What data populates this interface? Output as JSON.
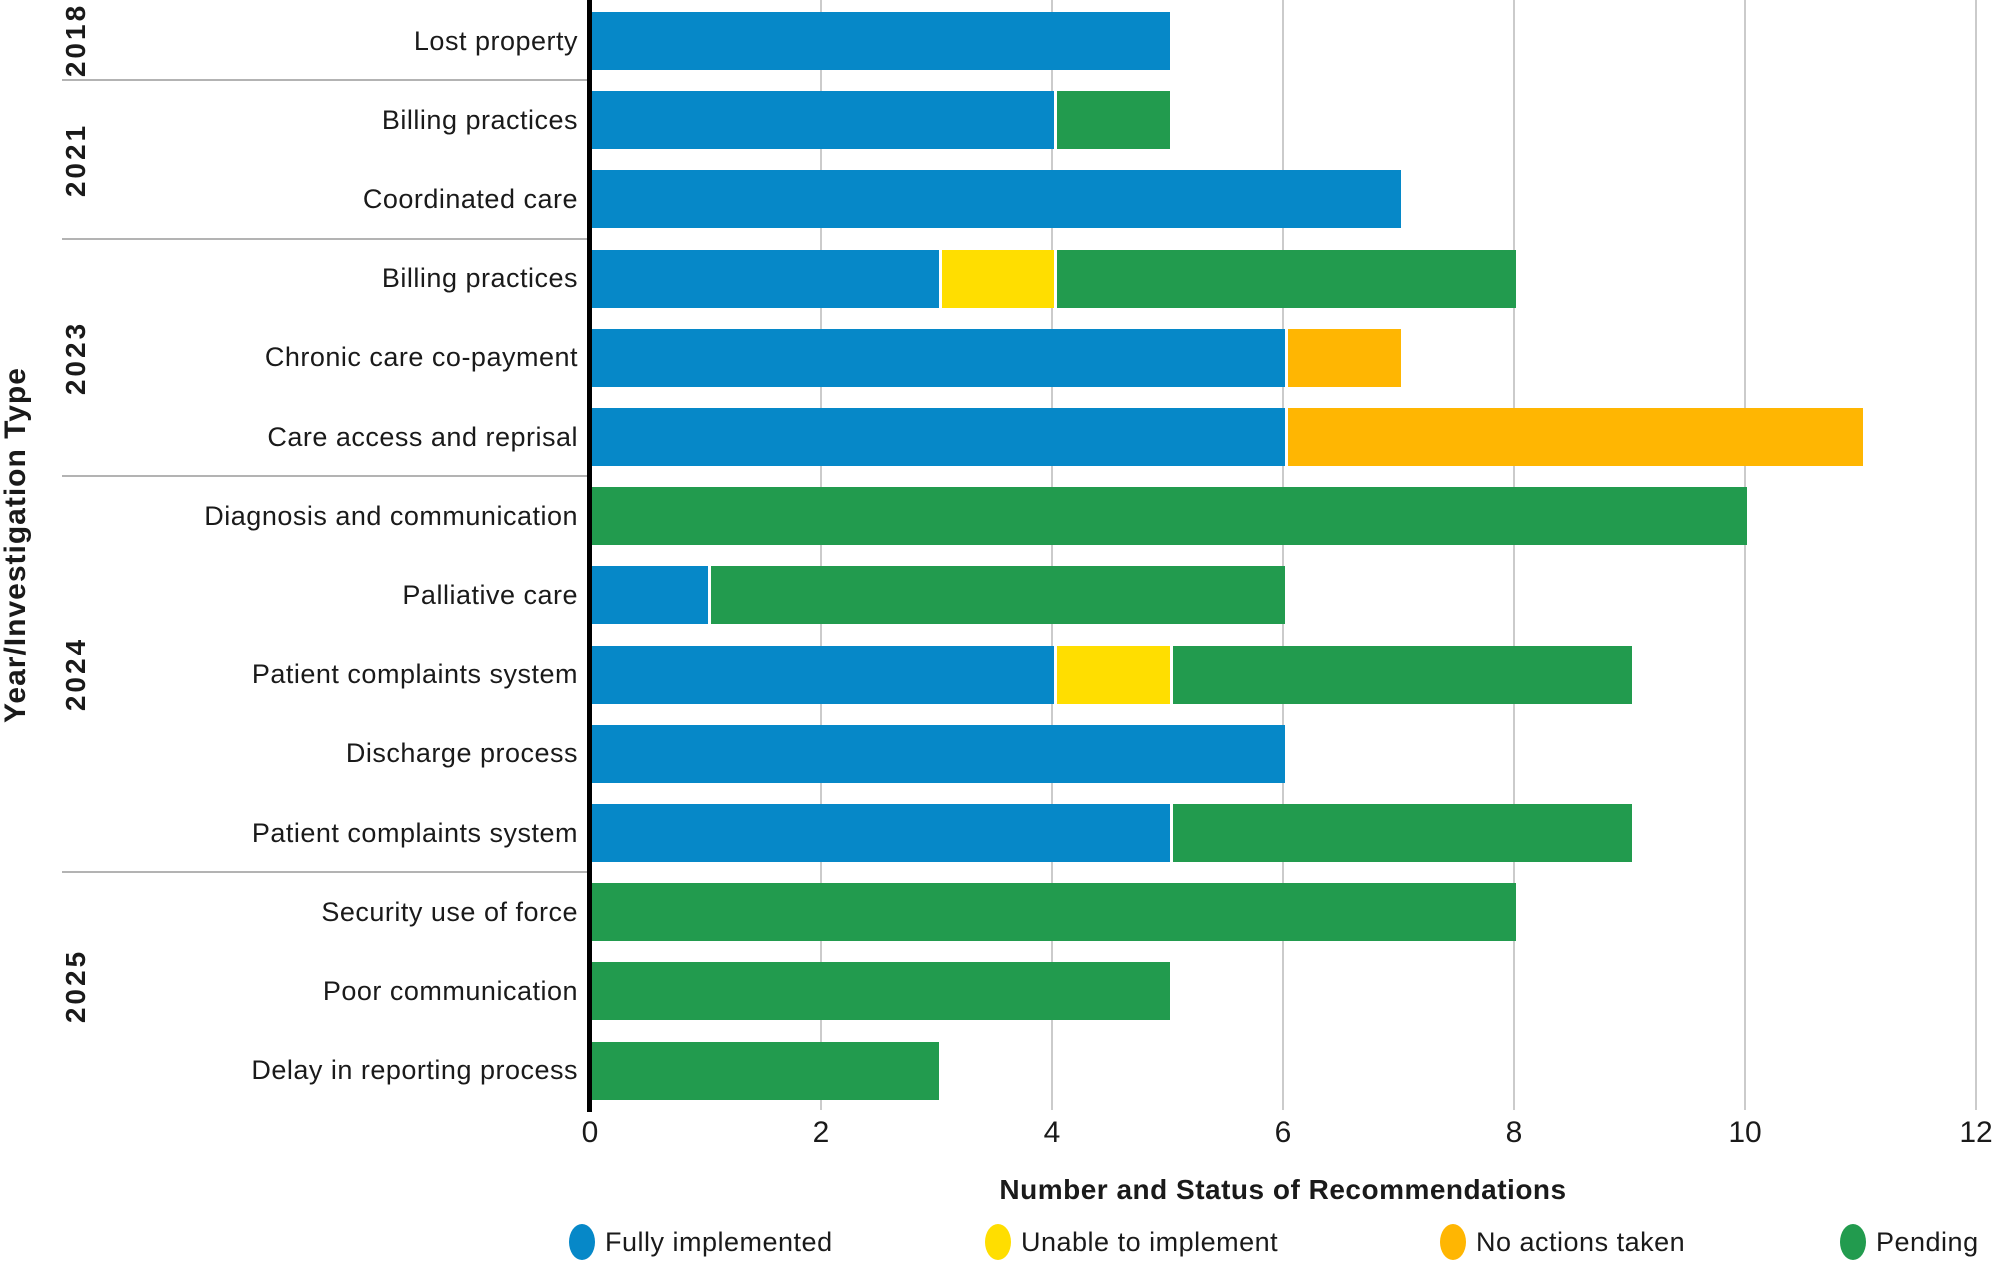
{
  "chart_data": {
    "type": "bar",
    "orientation": "horizontal",
    "stacked": true,
    "xlabel": "Number and Status of Recommendations",
    "ylabel": "Year/Investigation Type",
    "xlim": [
      0,
      12
    ],
    "xticks": [
      0,
      2,
      4,
      6,
      8,
      10,
      12
    ],
    "grid": "vertical",
    "legend_position": "bottom",
    "series": [
      {
        "key": "fully_implemented",
        "name": "Fully implemented",
        "color": "#0688C8"
      },
      {
        "key": "unable_to_implement",
        "name": "Unable to implement",
        "color": "#FFDE00"
      },
      {
        "key": "no_actions_taken",
        "name": "No actions taken",
        "color": "#FFB602"
      },
      {
        "key": "pending",
        "name": "Pending",
        "color": "#229B4E"
      }
    ],
    "rows": [
      {
        "year": "2018",
        "label": "Lost property",
        "values": {
          "fully_implemented": 5,
          "unable_to_implement": 0,
          "no_actions_taken": 0,
          "pending": 0
        }
      },
      {
        "year": "2021",
        "label": "Billing practices",
        "values": {
          "fully_implemented": 4,
          "unable_to_implement": 0,
          "no_actions_taken": 0,
          "pending": 1
        }
      },
      {
        "year": "2021",
        "label": "Coordinated care",
        "values": {
          "fully_implemented": 7,
          "unable_to_implement": 0,
          "no_actions_taken": 0,
          "pending": 0
        }
      },
      {
        "year": "2023",
        "label": "Billing practices",
        "values": {
          "fully_implemented": 3,
          "unable_to_implement": 1,
          "no_actions_taken": 0,
          "pending": 4
        }
      },
      {
        "year": "2023",
        "label": "Chronic care co-payment",
        "values": {
          "fully_implemented": 6,
          "unable_to_implement": 0,
          "no_actions_taken": 1,
          "pending": 0
        }
      },
      {
        "year": "2023",
        "label": "Care access and reprisal",
        "values": {
          "fully_implemented": 6,
          "unable_to_implement": 0,
          "no_actions_taken": 5,
          "pending": 0
        }
      },
      {
        "year": "2024",
        "label": "Diagnosis and communication",
        "values": {
          "fully_implemented": 0,
          "unable_to_implement": 0,
          "no_actions_taken": 0,
          "pending": 10
        }
      },
      {
        "year": "2024",
        "label": "Palliative care",
        "values": {
          "fully_implemented": 1,
          "unable_to_implement": 0,
          "no_actions_taken": 0,
          "pending": 5
        }
      },
      {
        "year": "2024",
        "label": "Patient complaints system",
        "values": {
          "fully_implemented": 4,
          "unable_to_implement": 1,
          "no_actions_taken": 0,
          "pending": 4
        }
      },
      {
        "year": "2024",
        "label": "Discharge process",
        "values": {
          "fully_implemented": 6,
          "unable_to_implement": 0,
          "no_actions_taken": 0,
          "pending": 0
        }
      },
      {
        "year": "2024",
        "label": "Patient complaints system",
        "values": {
          "fully_implemented": 5,
          "unable_to_implement": 0,
          "no_actions_taken": 0,
          "pending": 4
        }
      },
      {
        "year": "2025",
        "label": "Security use of force",
        "values": {
          "fully_implemented": 0,
          "unable_to_implement": 0,
          "no_actions_taken": 0,
          "pending": 8
        }
      },
      {
        "year": "2025",
        "label": "Poor communication",
        "values": {
          "fully_implemented": 0,
          "unable_to_implement": 0,
          "no_actions_taken": 0,
          "pending": 5
        }
      },
      {
        "year": "2025",
        "label": "Delay in reporting process",
        "values": {
          "fully_implemented": 0,
          "unable_to_implement": 0,
          "no_actions_taken": 0,
          "pending": 3
        }
      }
    ]
  },
  "colors": {
    "gridline": "#cbcbcb",
    "separator": "#b3b3b3",
    "axis_line": "#000000",
    "text": "#1a1a1a"
  }
}
